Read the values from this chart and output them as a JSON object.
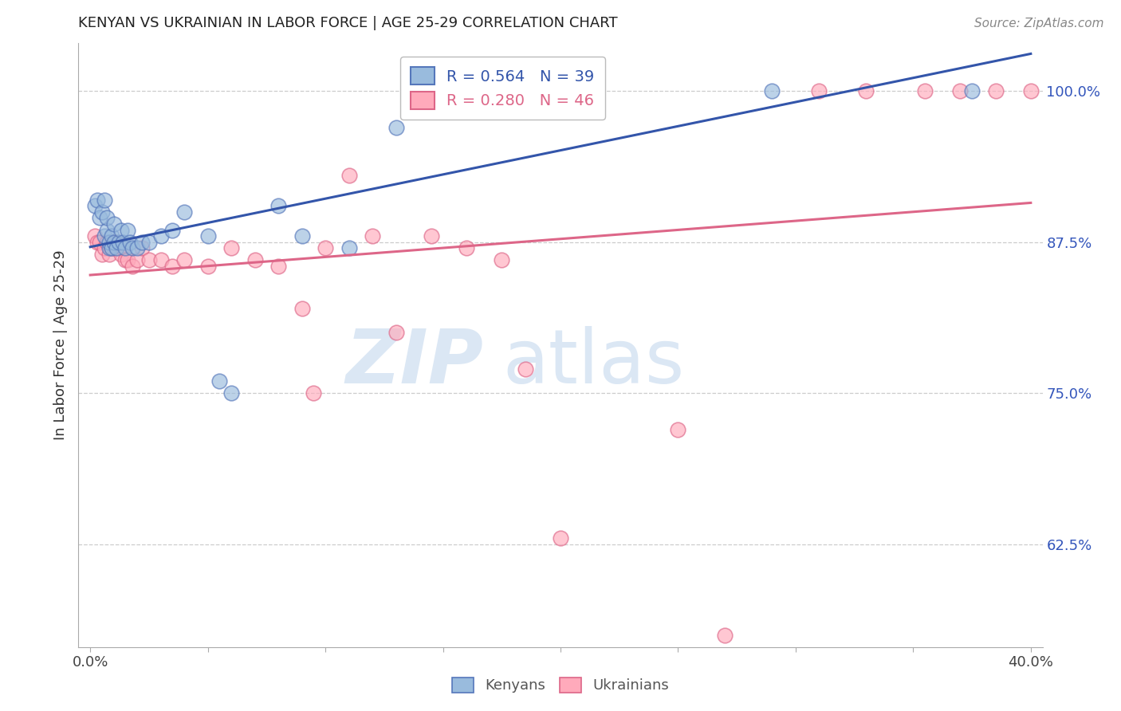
{
  "title": "KENYAN VS UKRAINIAN IN LABOR FORCE | AGE 25-29 CORRELATION CHART",
  "source": "Source: ZipAtlas.com",
  "ylabel": "In Labor Force | Age 25-29",
  "xlim": [
    -0.005,
    0.405
  ],
  "ylim": [
    0.54,
    1.04
  ],
  "xticks": [
    0.0,
    0.05,
    0.1,
    0.15,
    0.2,
    0.25,
    0.3,
    0.35,
    0.4
  ],
  "yticks_right": [
    1.0,
    0.875,
    0.75,
    0.625
  ],
  "ytick_labels_right": [
    "100.0%",
    "87.5%",
    "75.0%",
    "62.5%"
  ],
  "kenyan_color": "#99BBDD",
  "ukrainian_color": "#FFAABB",
  "kenyan_edge_color": "#5577BB",
  "ukrainian_edge_color": "#DD6688",
  "kenyan_line_color": "#3355AA",
  "ukrainian_line_color": "#DD6688",
  "legend_R_kenyan": "R = 0.564",
  "legend_N_kenyan": "N = 39",
  "legend_R_ukrainian": "R = 0.280",
  "legend_N_ukrainian": "N = 46",
  "grid_color": "#CCCCCC",
  "background_color": "#FFFFFF",
  "title_color": "#222222",
  "axis_label_color": "#333333",
  "right_tick_color": "#3355BB",
  "legend_kenyan_color": "#3355AA",
  "legend_ukrainian_color": "#DD6688",
  "kenyan_x": [
    0.002,
    0.003,
    0.004,
    0.005,
    0.006,
    0.006,
    0.007,
    0.007,
    0.008,
    0.008,
    0.009,
    0.009,
    0.01,
    0.01,
    0.011,
    0.012,
    0.013,
    0.014,
    0.015,
    0.016,
    0.017,
    0.018,
    0.02,
    0.022,
    0.025,
    0.03,
    0.035,
    0.04,
    0.05,
    0.055,
    0.06,
    0.08,
    0.09,
    0.11,
    0.13,
    0.155,
    0.165,
    0.29,
    0.375
  ],
  "kenyan_y": [
    0.905,
    0.91,
    0.895,
    0.9,
    0.88,
    0.91,
    0.885,
    0.895,
    0.87,
    0.875,
    0.88,
    0.87,
    0.89,
    0.875,
    0.87,
    0.875,
    0.885,
    0.875,
    0.87,
    0.885,
    0.875,
    0.87,
    0.87,
    0.875,
    0.875,
    0.88,
    0.885,
    0.9,
    0.88,
    0.76,
    0.75,
    0.905,
    0.88,
    0.87,
    0.97,
    1.0,
    1.0,
    1.0,
    1.0
  ],
  "ukrainian_x": [
    0.002,
    0.003,
    0.004,
    0.005,
    0.006,
    0.007,
    0.008,
    0.009,
    0.01,
    0.01,
    0.011,
    0.012,
    0.013,
    0.014,
    0.015,
    0.016,
    0.018,
    0.02,
    0.022,
    0.025,
    0.03,
    0.035,
    0.04,
    0.05,
    0.06,
    0.07,
    0.08,
    0.09,
    0.095,
    0.1,
    0.11,
    0.12,
    0.13,
    0.145,
    0.16,
    0.175,
    0.185,
    0.2,
    0.25,
    0.27,
    0.31,
    0.33,
    0.355,
    0.37,
    0.385,
    0.4
  ],
  "ukrainian_y": [
    0.88,
    0.875,
    0.875,
    0.865,
    0.87,
    0.875,
    0.865,
    0.87,
    0.87,
    0.875,
    0.875,
    0.87,
    0.865,
    0.87,
    0.86,
    0.86,
    0.855,
    0.86,
    0.87,
    0.86,
    0.86,
    0.855,
    0.86,
    0.855,
    0.87,
    0.86,
    0.855,
    0.82,
    0.75,
    0.87,
    0.93,
    0.88,
    0.8,
    0.88,
    0.87,
    0.86,
    0.77,
    0.63,
    0.72,
    0.55,
    1.0,
    1.0,
    1.0,
    1.0,
    1.0,
    1.0
  ],
  "bottom_legend_labels": [
    "Kenyans",
    "Ukrainians"
  ]
}
